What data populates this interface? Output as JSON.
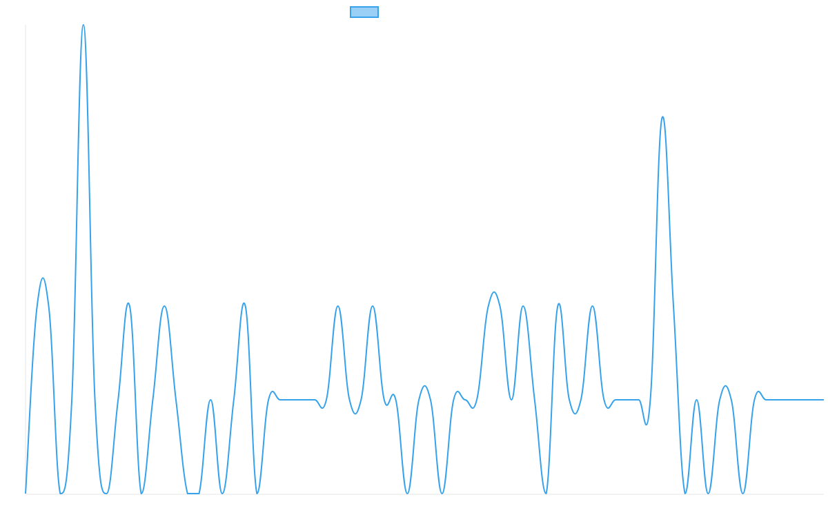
{
  "colors": {
    "line": "#36a2eb",
    "legend_fill": "#9ad0f5",
    "axis": "#e5e5e5"
  },
  "chart_data": {
    "type": "line",
    "title": "",
    "xlabel": "",
    "ylabel": "",
    "legend": {
      "position": "top",
      "entries": [
        ""
      ]
    },
    "grid": false,
    "ylim": [
      0,
      5
    ],
    "series": [
      {
        "name": "",
        "values": [
          0,
          2,
          2,
          0,
          1,
          5,
          1,
          0,
          1,
          2,
          0,
          1,
          2,
          1,
          0,
          0,
          1,
          0,
          1,
          2,
          0,
          1,
          1,
          1,
          1,
          1,
          1,
          2,
          1,
          1,
          2,
          1,
          1,
          0,
          1,
          1,
          0,
          1,
          1,
          1,
          2,
          2,
          1,
          2,
          1,
          0,
          2,
          1,
          1,
          2,
          1,
          1,
          1,
          1,
          1,
          4,
          2,
          0,
          1,
          0,
          1,
          1,
          0,
          1,
          1,
          1,
          1,
          1,
          1,
          1
        ]
      }
    ]
  }
}
